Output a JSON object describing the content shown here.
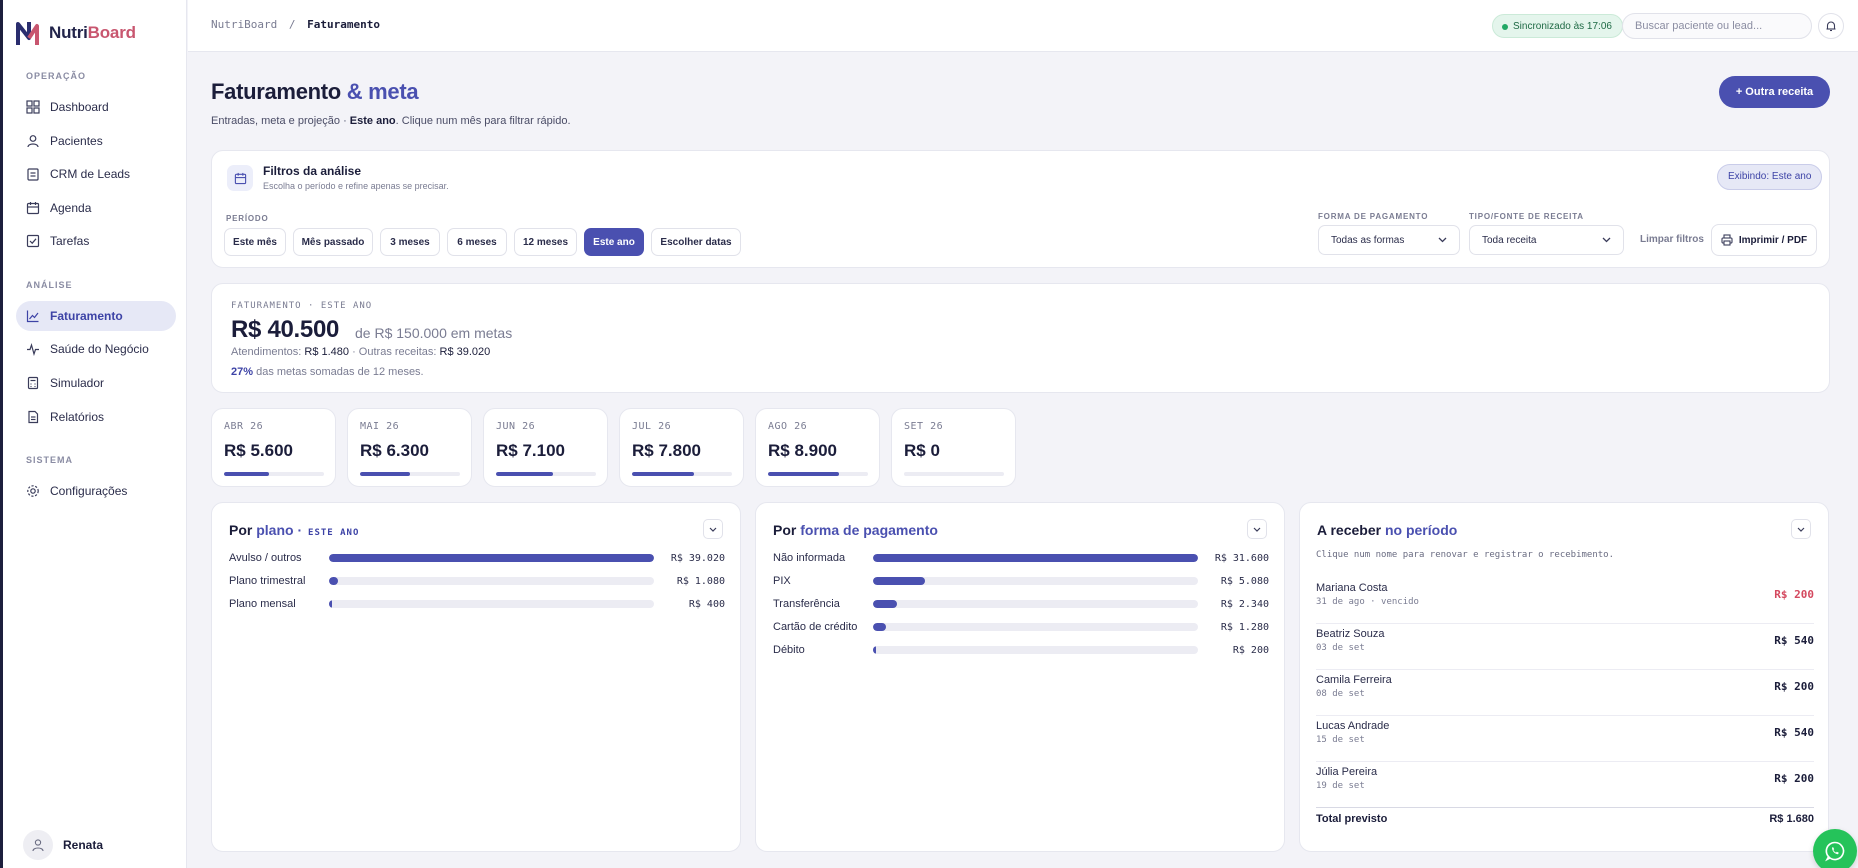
{
  "brand": {
    "name_main": "Nutri",
    "name_accent": "Board"
  },
  "sidebar": {
    "sections": [
      "OPERAÇÃO",
      "ANÁLISE",
      "SISTEMA"
    ],
    "items": [
      {
        "label": "Dashboard",
        "icon": "grid-icon"
      },
      {
        "label": "Pacientes",
        "icon": "user-icon"
      },
      {
        "label": "CRM de Leads",
        "icon": "clipboard-icon"
      },
      {
        "label": "Agenda",
        "icon": "calendar-icon"
      },
      {
        "label": "Tarefas",
        "icon": "checkbox-icon"
      },
      {
        "label": "Faturamento",
        "icon": "chart-line-icon",
        "active": true
      },
      {
        "label": "Saúde do Negócio",
        "icon": "pulse-icon"
      },
      {
        "label": "Simulador",
        "icon": "calculator-icon"
      },
      {
        "label": "Relatórios",
        "icon": "document-icon"
      },
      {
        "label": "Configurações",
        "icon": "gear-icon"
      }
    ],
    "user": "Renata"
  },
  "topbar": {
    "breadcrumb_root": "NutriBoard",
    "breadcrumb_sep": "/",
    "breadcrumb_current": "Faturamento",
    "sync_status": "Sincronizado às 17:06",
    "search_placeholder": "Buscar paciente ou lead..."
  },
  "header": {
    "title_main": "Faturamento",
    "title_accent": "& meta",
    "subtitle_pre": "Entradas, meta e projeção · ",
    "subtitle_bold": "Este ano",
    "subtitle_post": ". Clique num mês para filtrar rápido.",
    "cta_label": "+ Outra receita"
  },
  "filters": {
    "title": "Filtros da análise",
    "subtitle": "Escolha o período e refine apenas se precisar.",
    "showing_badge": "Exibindo: Este ano",
    "period_label": "PERÍODO",
    "period_options": [
      "Este mês",
      "Mês passado",
      "3 meses",
      "6 meses",
      "12 meses",
      "Este ano",
      "Escolher datas"
    ],
    "period_selected": "Este ano",
    "payment_label": "FORMA DE PAGAMENTO",
    "payment_value": "Todas as formas",
    "source_label": "TIPO/FONTE DE RECEITA",
    "source_value": "Toda receita",
    "clear_label": "Limpar filtros",
    "print_label": "Imprimir / PDF"
  },
  "summary": {
    "label": "FATURAMENTO · ESTE ANO",
    "value": "R$ 40.500",
    "goal_text": "de R$ 150.000 em metas",
    "break_pre": "Atendimentos: ",
    "break_attend": "R$ 1.480",
    "break_mid": " · Outras receitas: ",
    "break_other": "R$ 39.020",
    "pct_bold": "27%",
    "pct_text": " das metas somadas de 12 meses."
  },
  "months": [
    {
      "label": "ABR 26",
      "value": "R$ 5.600",
      "progress": 0.45
    },
    {
      "label": "MAI 26",
      "value": "R$ 6.300",
      "progress": 0.5
    },
    {
      "label": "JUN 26",
      "value": "R$ 7.100",
      "progress": 0.57
    },
    {
      "label": "JUL 26",
      "value": "R$ 7.800",
      "progress": 0.62
    },
    {
      "label": "AGO 26",
      "value": "R$ 8.900",
      "progress": 0.71
    },
    {
      "label": "SET 26",
      "value": "R$ 0",
      "progress": 0
    }
  ],
  "by_plan": {
    "title_pre": "Por ",
    "title_accent": "plano",
    "title_sep": " · ",
    "tag": "ESTE ANO",
    "rows": [
      {
        "label": "Avulso / outros",
        "value": "R$ 39.020",
        "amount": 39020
      },
      {
        "label": "Plano trimestral",
        "value": "R$ 1.080",
        "amount": 1080
      },
      {
        "label": "Plano mensal",
        "value": "R$ 400",
        "amount": 400
      }
    ]
  },
  "by_payment": {
    "title_pre": "Por ",
    "title_accent": "forma de pagamento",
    "rows": [
      {
        "label": "Não informada",
        "value": "R$ 31.600",
        "amount": 31600
      },
      {
        "label": "PIX",
        "value": "R$ 5.080",
        "amount": 5080
      },
      {
        "label": "Transferência",
        "value": "R$ 2.340",
        "amount": 2340
      },
      {
        "label": "Cartão de crédito",
        "value": "R$ 1.280",
        "amount": 1280
      },
      {
        "label": "Débito",
        "value": "R$ 200",
        "amount": 200
      }
    ]
  },
  "receivables": {
    "title_pre": "A receber ",
    "title_accent": "no período",
    "hint": "Clique num nome para renovar e registrar o recebimento.",
    "rows": [
      {
        "name": "Mariana Costa",
        "date": "31 de ago · vencido",
        "amount": "R$ 200",
        "overdue": true
      },
      {
        "name": "Beatriz Souza",
        "date": "03 de set",
        "amount": "R$ 540"
      },
      {
        "name": "Camila Ferreira",
        "date": "08 de set",
        "amount": "R$ 200"
      },
      {
        "name": "Lucas Andrade",
        "date": "15 de set",
        "amount": "R$ 540"
      },
      {
        "name": "Júlia Pereira",
        "date": "19 de set",
        "amount": "R$ 200"
      }
    ],
    "total_label": "Total previsto",
    "total_value": "R$ 1.680"
  },
  "colors": {
    "accent": "#4a50b0",
    "overdue": "#d4495f",
    "success": "#22a865",
    "whatsapp": "#25c35a"
  }
}
